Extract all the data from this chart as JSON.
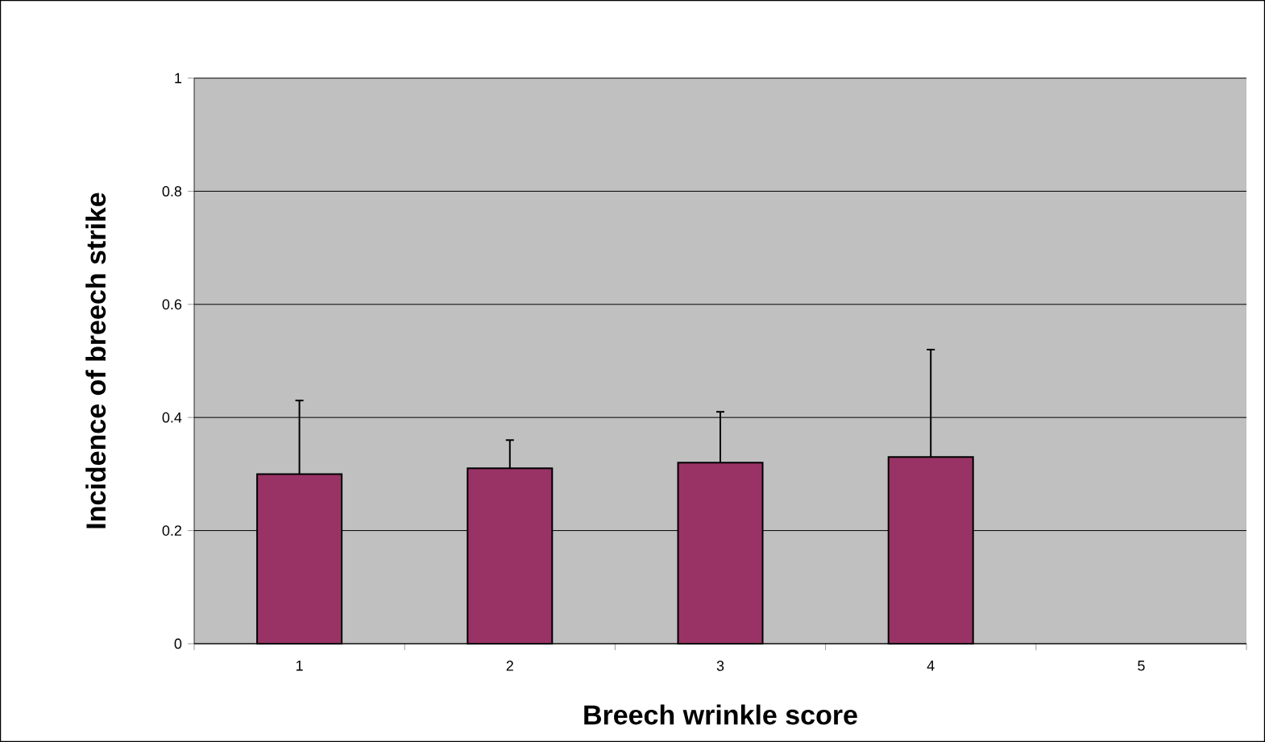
{
  "chart_data": {
    "type": "bar",
    "xlabel": "Breech wrinkle score",
    "ylabel": "Incidence of breech strike",
    "categories": [
      "1",
      "2",
      "3",
      "4",
      "5"
    ],
    "values": [
      0.3,
      0.31,
      0.32,
      0.33,
      null
    ],
    "errors": [
      [
        0.3,
        0.43
      ],
      [
        0.31,
        0.36
      ],
      [
        0.32,
        0.41
      ],
      [
        0.33,
        0.52
      ],
      null
    ],
    "color": "#993366",
    "ylim": [
      0,
      1
    ],
    "yticks": [
      0,
      0.2,
      0.4,
      0.6,
      0.8,
      1
    ],
    "grid": "y"
  }
}
